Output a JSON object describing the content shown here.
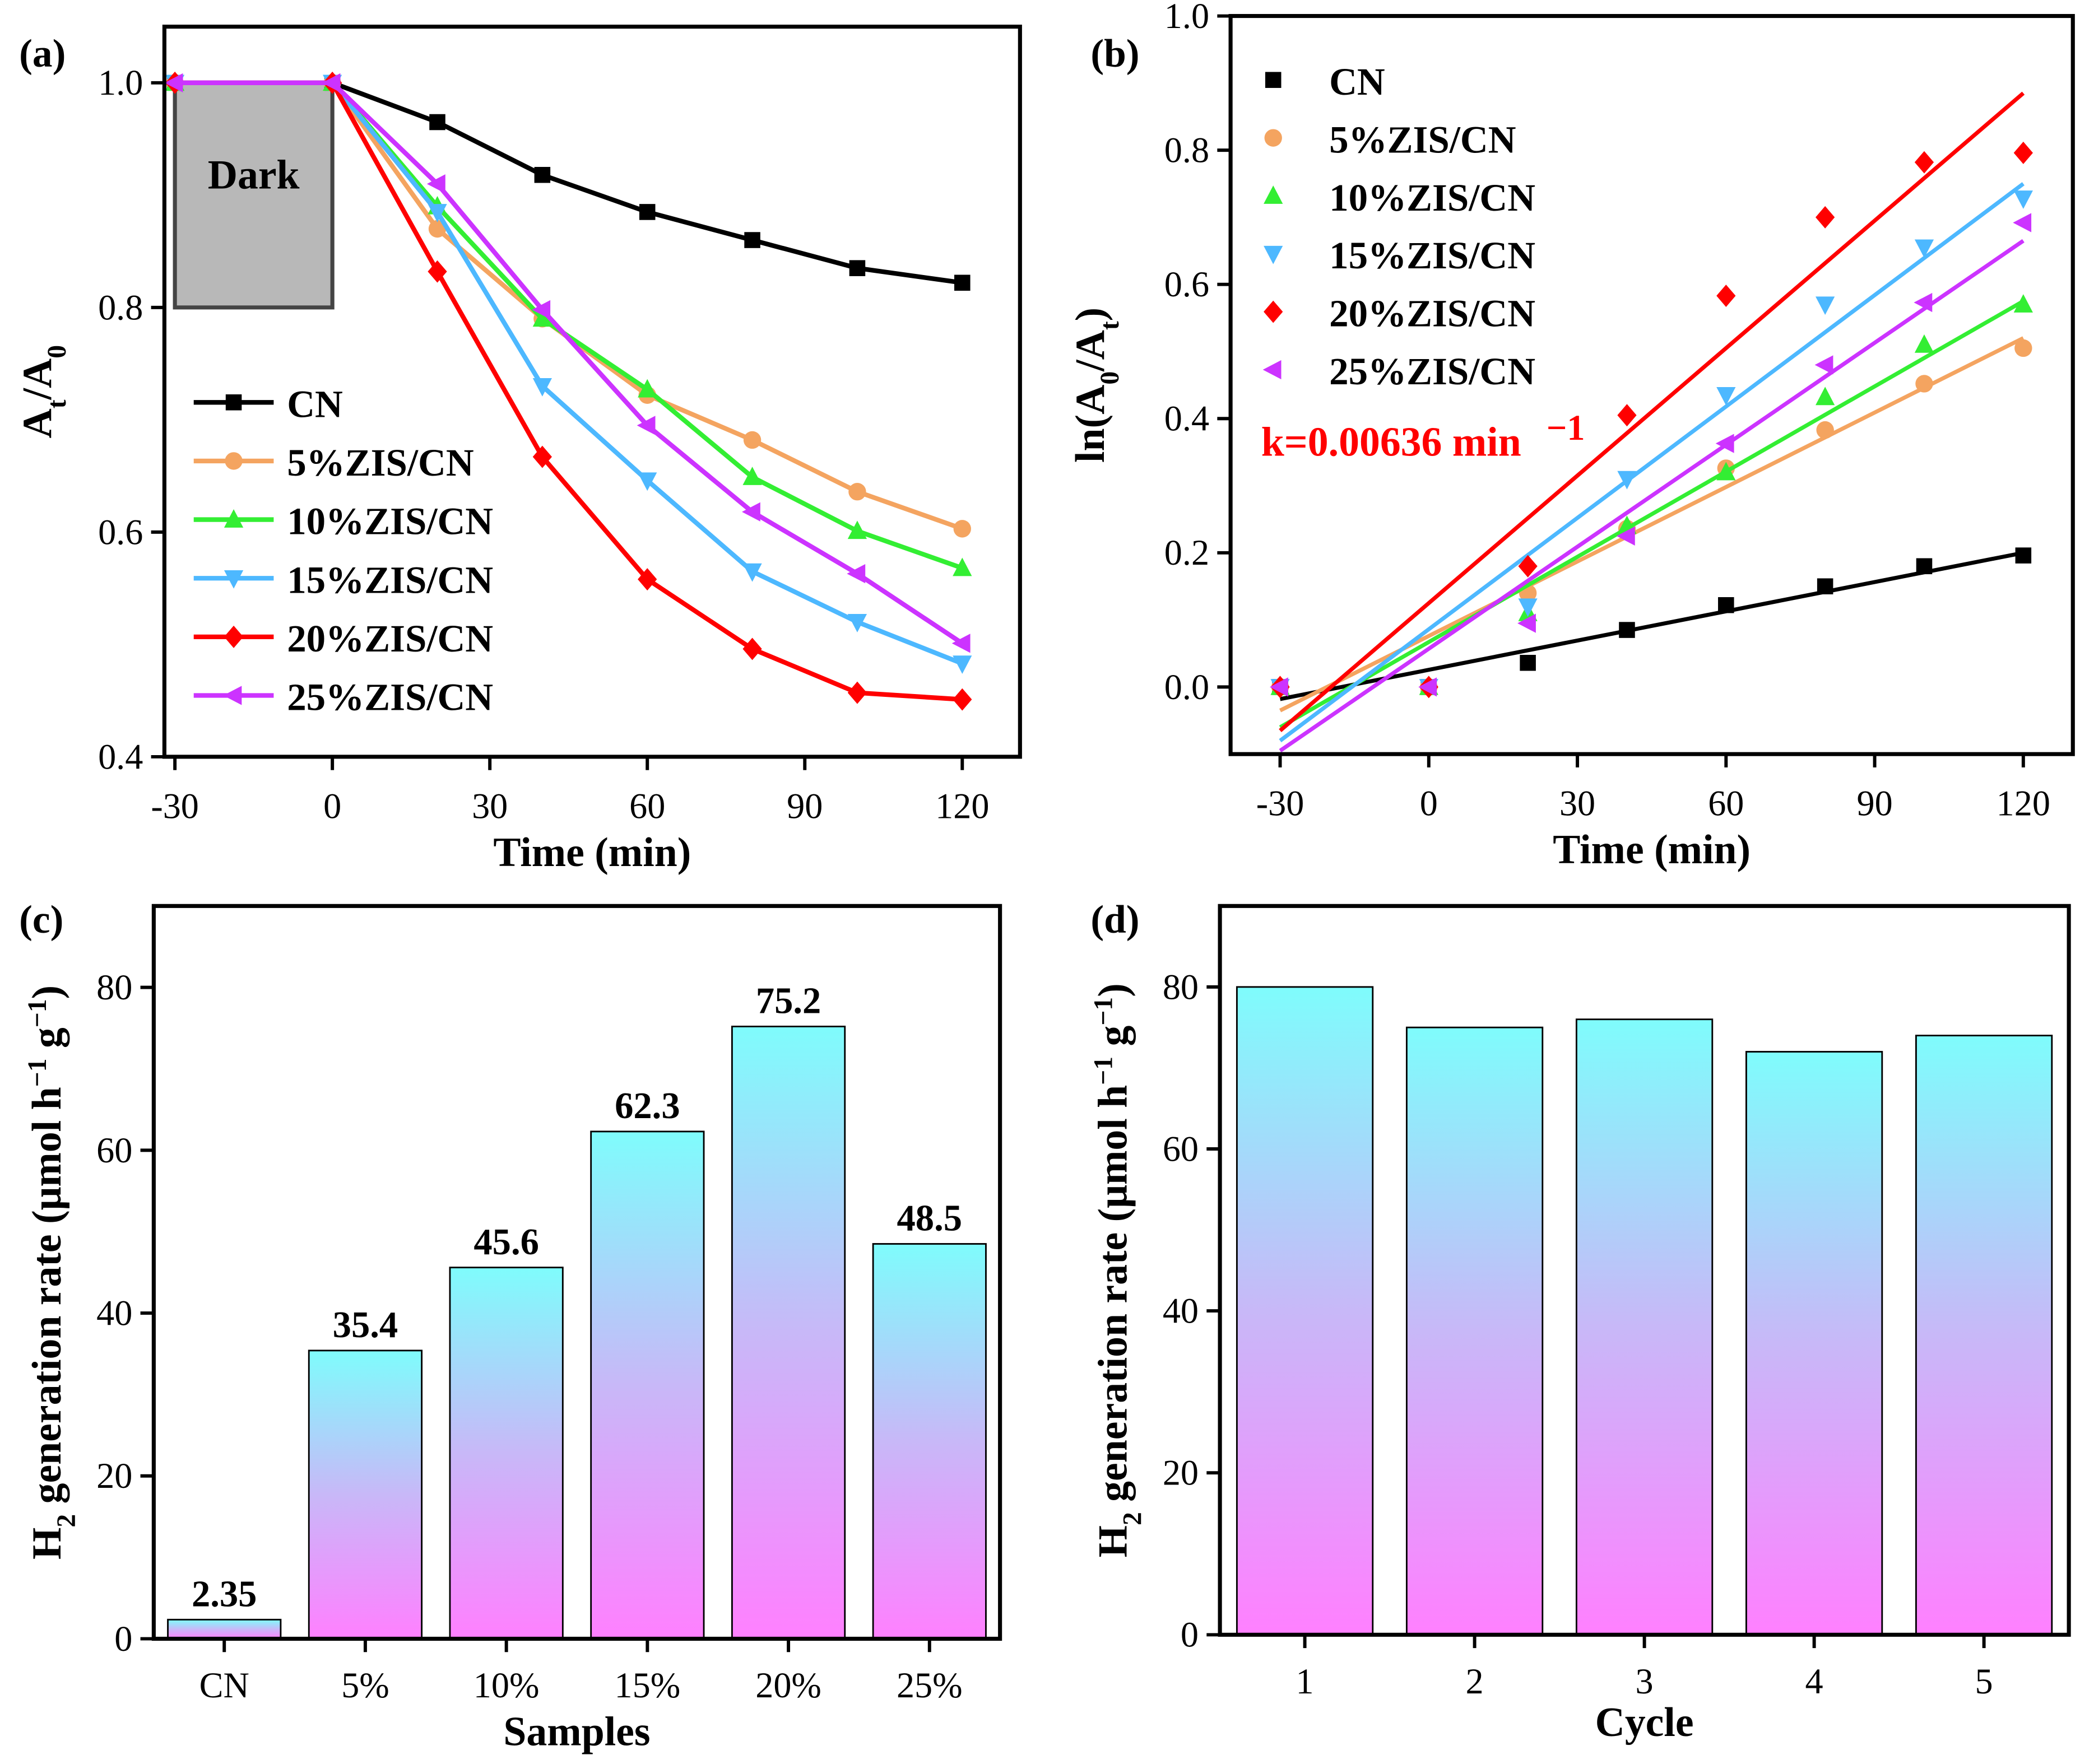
{
  "chart_data": [
    {
      "panel": "(a)",
      "type": "line",
      "xlabel": "Time (min)",
      "ylabel": "A_t/A_0",
      "xlim": [
        -32,
        131
      ],
      "ylim": [
        0.4,
        1.05
      ],
      "xticks": [
        -30,
        0,
        30,
        60,
        90,
        120
      ],
      "yticks": [
        0.4,
        0.6,
        0.8,
        1.0
      ],
      "annotation": "Dark",
      "legend_position": "bottom-left",
      "x": [
        -30,
        0,
        20,
        40,
        60,
        80,
        100,
        120
      ],
      "series": [
        {
          "name": "CN",
          "color": "#000000",
          "marker": "square",
          "values": [
            1.0,
            1.0,
            0.965,
            0.918,
            0.885,
            0.86,
            0.835,
            0.822
          ]
        },
        {
          "name": "5%ZIS/CN",
          "color": "#f4a460",
          "marker": "circle",
          "values": [
            1.0,
            1.0,
            0.87,
            0.79,
            0.722,
            0.682,
            0.636,
            0.603
          ]
        },
        {
          "name": "10%ZIS/CN",
          "color": "#33ee33",
          "marker": "triangle-up",
          "values": [
            1.0,
            1.0,
            0.89,
            0.79,
            0.727,
            0.649,
            0.601,
            0.568
          ]
        },
        {
          "name": "15%ZIS/CN",
          "color": "#4db8ff",
          "marker": "triangle-down",
          "values": [
            1.0,
            1.0,
            0.885,
            0.73,
            0.646,
            0.565,
            0.52,
            0.483
          ]
        },
        {
          "name": "20%ZIS/CN",
          "color": "#ff0000",
          "marker": "diamond",
          "values": [
            1.0,
            1.0,
            0.832,
            0.667,
            0.558,
            0.496,
            0.457,
            0.451
          ]
        },
        {
          "name": "25%ZIS/CN",
          "color": "#cc33ff",
          "marker": "triangle-left",
          "values": [
            1.0,
            1.0,
            0.91,
            0.798,
            0.695,
            0.618,
            0.563,
            0.501
          ]
        }
      ]
    },
    {
      "panel": "(b)",
      "type": "scatter",
      "xlabel": "Time (min)",
      "ylabel": "ln(A_0/A_t)",
      "xlim": [
        -40,
        130
      ],
      "ylim": [
        -0.1,
        1.0
      ],
      "xticks": [
        -30,
        0,
        30,
        60,
        90,
        120
      ],
      "yticks": [
        0.0,
        0.2,
        0.4,
        0.6,
        0.8,
        1.0
      ],
      "annotation": "k=0.00636 min",
      "annotation_sup": "−1",
      "legend_position": "top-left",
      "x": [
        -30,
        0,
        20,
        40,
        60,
        80,
        100,
        120
      ],
      "series": [
        {
          "name": "CN",
          "color": "#000000",
          "marker": "square",
          "values": [
            0,
            0,
            0.036,
            0.085,
            0.122,
            0.15,
            0.18,
            0.196
          ],
          "fit": [
            -0.018,
            0.2
          ]
        },
        {
          "name": "5%ZIS/CN",
          "color": "#f4a460",
          "marker": "circle",
          "values": [
            0,
            0,
            0.14,
            0.236,
            0.326,
            0.383,
            0.452,
            0.505
          ],
          "fit": [
            -0.035,
            0.52
          ]
        },
        {
          "name": "10%ZIS/CN",
          "color": "#33ee33",
          "marker": "triangle-up",
          "values": [
            0,
            0,
            0.11,
            0.24,
            0.32,
            0.432,
            0.51,
            0.57
          ],
          "fit": [
            -0.06,
            0.575
          ]
        },
        {
          "name": "15%ZIS/CN",
          "color": "#4db8ff",
          "marker": "triangle-down",
          "values": [
            0,
            0,
            0.12,
            0.31,
            0.435,
            0.57,
            0.655,
            0.728
          ],
          "fit": [
            -0.08,
            0.75
          ]
        },
        {
          "name": "20%ZIS/CN",
          "color": "#ff0000",
          "marker": "diamond",
          "values": [
            0,
            0,
            0.18,
            0.405,
            0.583,
            0.7,
            0.782,
            0.796
          ],
          "fit": [
            -0.065,
            0.885
          ]
        },
        {
          "name": "25%ZIS/CN",
          "color": "#cc33ff",
          "marker": "triangle-left",
          "values": [
            0,
            0,
            0.095,
            0.225,
            0.363,
            0.48,
            0.573,
            0.692
          ],
          "fit": [
            -0.095,
            0.665
          ]
        }
      ]
    },
    {
      "panel": "(c)",
      "type": "bar",
      "xlabel": "Samples",
      "ylabel": "H2 generation rate (μmol h−1 g−1)",
      "ylim": [
        0,
        90
      ],
      "yticks": [
        0,
        20,
        40,
        60,
        80
      ],
      "categories": [
        "CN",
        "5%",
        "10%",
        "15%",
        "20%",
        "25%"
      ],
      "values": [
        2.35,
        35.4,
        45.6,
        62.3,
        75.2,
        48.5
      ],
      "data_labels": [
        "2.35",
        "35.4",
        "45.6",
        "62.3",
        "75.2",
        "48.5"
      ],
      "gradient": [
        "#7ffcfc",
        "#c8b8f8",
        "#ff80ff"
      ]
    },
    {
      "panel": "(d)",
      "type": "bar",
      "xlabel": "Cycle",
      "ylabel": "H2 generation rate (μmol h−1 g−1)",
      "ylim": [
        0,
        90
      ],
      "yticks": [
        0,
        20,
        40,
        60,
        80
      ],
      "categories": [
        "1",
        "2",
        "3",
        "4",
        "5"
      ],
      "values": [
        80,
        75,
        76,
        72,
        74
      ],
      "gradient": [
        "#7ffcfc",
        "#c8b8f8",
        "#ff80ff"
      ]
    }
  ]
}
